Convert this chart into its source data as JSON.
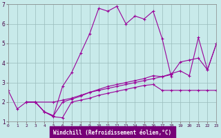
{
  "xlabel": "Windchill (Refroidissement éolien,°C)",
  "bg_color": "#c8eaea",
  "line_color": "#990099",
  "xlabel_bg": "#770077",
  "xlim": [
    0,
    23
  ],
  "ylim": [
    1,
    7
  ],
  "yticks": [
    1,
    2,
    3,
    4,
    5,
    6,
    7
  ],
  "xticks": [
    0,
    1,
    2,
    3,
    4,
    5,
    6,
    7,
    8,
    9,
    10,
    11,
    12,
    13,
    14,
    15,
    16,
    17,
    18,
    19,
    20,
    21,
    22,
    23
  ],
  "line1": [
    [
      0,
      2.6
    ],
    [
      1,
      1.65
    ],
    [
      2,
      2.0
    ],
    [
      3,
      2.0
    ],
    [
      4,
      1.5
    ],
    [
      5,
      1.3
    ],
    [
      6,
      2.8
    ],
    [
      7,
      3.5
    ],
    [
      8,
      4.5
    ],
    [
      9,
      5.5
    ],
    [
      10,
      6.8
    ],
    [
      11,
      6.65
    ],
    [
      12,
      6.9
    ],
    [
      13,
      6.0
    ],
    [
      14,
      6.4
    ],
    [
      15,
      6.25
    ],
    [
      16,
      6.65
    ],
    [
      17,
      5.25
    ],
    [
      18,
      3.3
    ]
  ],
  "line2": [
    [
      3,
      2.0
    ],
    [
      4,
      1.5
    ],
    [
      5,
      1.25
    ],
    [
      6,
      1.2
    ],
    [
      7,
      2.0
    ],
    [
      8,
      2.1
    ],
    [
      9,
      2.2
    ],
    [
      10,
      2.35
    ],
    [
      11,
      2.45
    ],
    [
      12,
      2.55
    ],
    [
      13,
      2.65
    ],
    [
      14,
      2.75
    ],
    [
      15,
      2.85
    ],
    [
      16,
      2.9
    ],
    [
      17,
      2.6
    ],
    [
      18,
      2.6
    ],
    [
      19,
      2.6
    ],
    [
      20,
      2.6
    ],
    [
      21,
      2.6
    ],
    [
      22,
      2.6
    ],
    [
      23,
      2.6
    ]
  ],
  "line3": [
    [
      2,
      2.0
    ],
    [
      3,
      2.0
    ],
    [
      4,
      1.5
    ],
    [
      5,
      1.3
    ],
    [
      6,
      2.0
    ],
    [
      7,
      2.15
    ],
    [
      8,
      2.3
    ],
    [
      9,
      2.5
    ],
    [
      10,
      2.65
    ],
    [
      11,
      2.8
    ],
    [
      12,
      2.9
    ],
    [
      13,
      3.0
    ],
    [
      14,
      3.1
    ],
    [
      15,
      3.2
    ],
    [
      16,
      3.35
    ],
    [
      17,
      3.3
    ],
    [
      18,
      3.4
    ],
    [
      19,
      4.05
    ],
    [
      20,
      4.15
    ],
    [
      21,
      4.25
    ],
    [
      22,
      3.65
    ],
    [
      23,
      5.0
    ]
  ],
  "line4": [
    [
      2,
      2.0
    ],
    [
      5,
      2.0
    ],
    [
      6,
      2.1
    ],
    [
      7,
      2.2
    ],
    [
      8,
      2.35
    ],
    [
      9,
      2.5
    ],
    [
      10,
      2.6
    ],
    [
      11,
      2.7
    ],
    [
      12,
      2.8
    ],
    [
      13,
      2.9
    ],
    [
      14,
      3.0
    ],
    [
      15,
      3.1
    ],
    [
      16,
      3.2
    ],
    [
      17,
      3.3
    ],
    [
      18,
      3.45
    ],
    [
      19,
      3.6
    ],
    [
      20,
      3.35
    ],
    [
      21,
      5.3
    ],
    [
      22,
      3.65
    ],
    [
      23,
      5.0
    ]
  ]
}
